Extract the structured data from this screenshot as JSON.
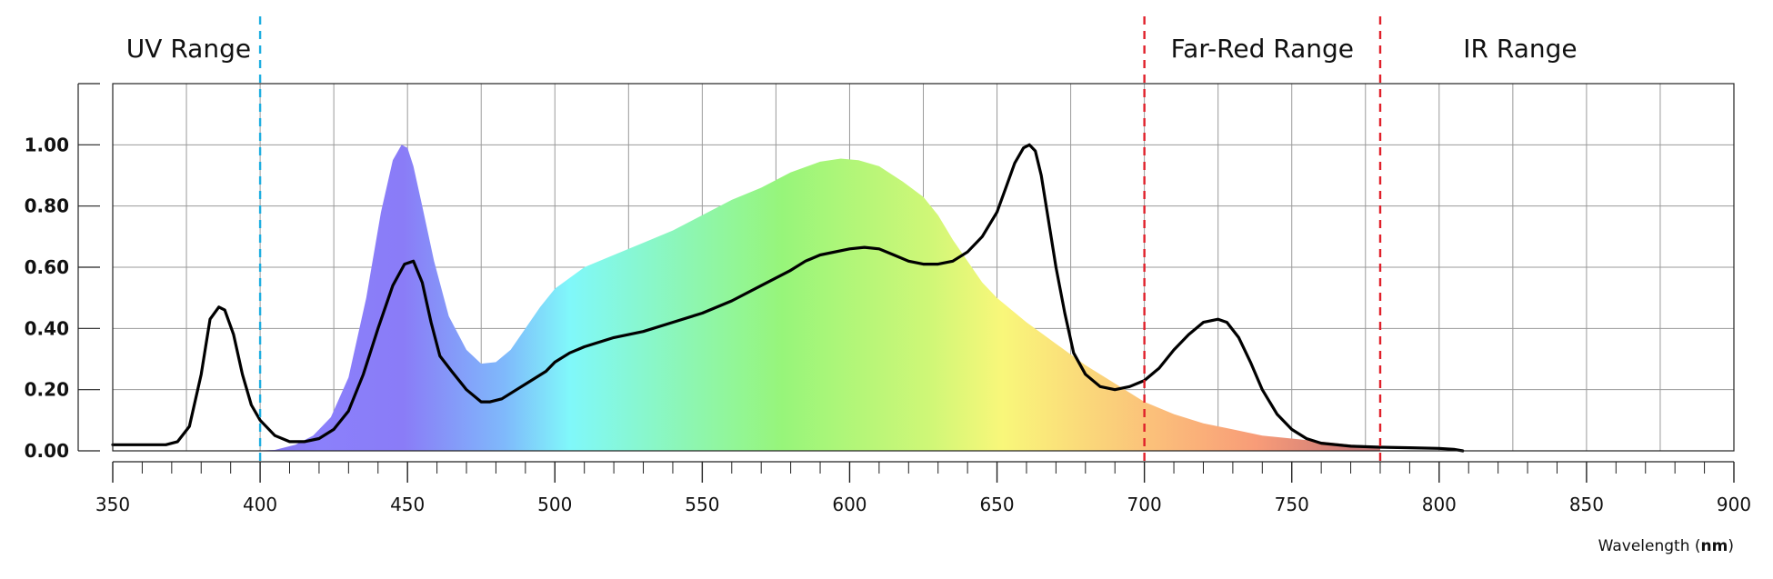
{
  "chart_data": {
    "type": "area",
    "xlabel_text": "Wavelength (",
    "xlabel_unit": "nm",
    "xlabel_close": ")",
    "xlim": [
      350,
      900
    ],
    "ylim": [
      0,
      1.2
    ],
    "xticks": [
      350,
      400,
      450,
      500,
      550,
      600,
      650,
      700,
      750,
      800,
      850,
      900
    ],
    "xtick_labels": [
      "350",
      "400",
      "450",
      "500",
      "550",
      "600",
      "650",
      "700",
      "750",
      "800",
      "850",
      "900"
    ],
    "yticks": [
      0,
      0.2,
      0.4,
      0.6,
      0.8,
      1.0
    ],
    "ytick_labels": [
      "0.00",
      "0.20",
      "0.40",
      "0.60",
      "0.80",
      "1.00"
    ],
    "grid": true,
    "regions": [
      {
        "label": "UV Range",
        "boundary": 400,
        "color": "#1eaee0"
      },
      {
        "label": "Far-Red Range",
        "boundary": 700,
        "color": "#e0202a"
      },
      {
        "label": "IR Range",
        "boundary": 780,
        "color": "#e0202a"
      }
    ],
    "series": [
      {
        "kind": "filled-spectrum",
        "x": [
          362,
          380,
          395,
          405,
          412,
          418,
          424,
          430,
          436,
          441,
          445,
          448,
          450,
          452,
          455,
          459,
          464,
          470,
          475,
          480,
          485,
          490,
          495,
          500,
          510,
          520,
          530,
          540,
          550,
          560,
          570,
          580,
          590,
          597,
          603,
          610,
          618,
          625,
          630,
          635,
          640,
          645,
          650,
          660,
          670,
          680,
          690,
          700,
          710,
          720,
          730,
          740,
          750,
          760,
          770,
          780
        ],
        "y": [
          0.0,
          0.0,
          0.0,
          0.003,
          0.02,
          0.05,
          0.11,
          0.24,
          0.5,
          0.78,
          0.95,
          1.0,
          0.99,
          0.93,
          0.8,
          0.62,
          0.44,
          0.33,
          0.285,
          0.29,
          0.33,
          0.4,
          0.47,
          0.53,
          0.6,
          0.64,
          0.68,
          0.72,
          0.77,
          0.82,
          0.86,
          0.91,
          0.945,
          0.955,
          0.95,
          0.93,
          0.88,
          0.83,
          0.77,
          0.69,
          0.62,
          0.55,
          0.5,
          0.42,
          0.35,
          0.28,
          0.22,
          0.16,
          0.12,
          0.09,
          0.07,
          0.05,
          0.04,
          0.03,
          0.02,
          0.015
        ]
      },
      {
        "kind": "line",
        "color": "#000000",
        "x": [
          350,
          360,
          364,
          368,
          372,
          376,
          380,
          383,
          386,
          388,
          391,
          394,
          397,
          400,
          405,
          410,
          415,
          420,
          425,
          430,
          435,
          440,
          445,
          449,
          452,
          455,
          458,
          461,
          465,
          470,
          475,
          478,
          482,
          487,
          492,
          497,
          500,
          505,
          510,
          520,
          530,
          540,
          550,
          560,
          570,
          580,
          585,
          590,
          600,
          605,
          610,
          615,
          620,
          625,
          630,
          635,
          640,
          645,
          650,
          653,
          656,
          659,
          661,
          663,
          665,
          667,
          670,
          673,
          676,
          680,
          685,
          690,
          695,
          700,
          705,
          710,
          715,
          720,
          725,
          728,
          732,
          736,
          740,
          745,
          750,
          755,
          760,
          770,
          780,
          790,
          800,
          805,
          808
        ],
        "y": [
          0.02,
          0.02,
          0.02,
          0.02,
          0.03,
          0.08,
          0.25,
          0.43,
          0.47,
          0.46,
          0.38,
          0.25,
          0.15,
          0.1,
          0.05,
          0.03,
          0.03,
          0.04,
          0.07,
          0.13,
          0.25,
          0.4,
          0.54,
          0.61,
          0.62,
          0.55,
          0.42,
          0.31,
          0.26,
          0.2,
          0.16,
          0.16,
          0.17,
          0.2,
          0.23,
          0.26,
          0.29,
          0.32,
          0.34,
          0.37,
          0.39,
          0.42,
          0.45,
          0.49,
          0.54,
          0.59,
          0.62,
          0.64,
          0.66,
          0.665,
          0.66,
          0.64,
          0.62,
          0.61,
          0.61,
          0.62,
          0.65,
          0.7,
          0.78,
          0.86,
          0.94,
          0.99,
          1.0,
          0.98,
          0.9,
          0.78,
          0.6,
          0.45,
          0.32,
          0.25,
          0.21,
          0.2,
          0.21,
          0.23,
          0.27,
          0.33,
          0.38,
          0.42,
          0.43,
          0.42,
          0.37,
          0.29,
          0.2,
          0.12,
          0.07,
          0.04,
          0.025,
          0.015,
          0.012,
          0.01,
          0.008,
          0.005,
          0.0
        ]
      }
    ]
  }
}
